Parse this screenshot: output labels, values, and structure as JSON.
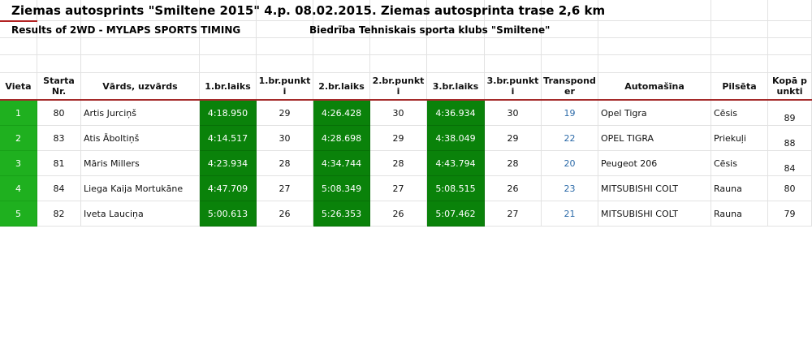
{
  "header": {
    "title": "Ziemas autosprints \"Smiltene 2015\" 4.p. 08.02.2015. Ziemas autosprinta trase 2,6 km",
    "subtitle_left": "Results of 2WD - MYLAPS SPORTS TIMING",
    "subtitle_right": "Biedrība Tehniskais sporta klubs \"Smiltene\""
  },
  "table": {
    "columns": [
      "Vieta",
      "Starta Nr.",
      "Vārds, uzvārds",
      "1.br.laiks",
      "1.br.punkti",
      "2.br.laiks",
      "2.br.punkti",
      "3.br.laiks",
      "3.br.punkti",
      "Transponder",
      "Automašīna",
      "Pilsēta",
      "Kopā punkti"
    ],
    "rows": [
      [
        "1",
        "80",
        "Artis Jurciņš",
        "4:18.950",
        "29",
        "4:26.428",
        "30",
        "4:36.934",
        "30",
        "19",
        "Opel Tigra",
        "Cēsis",
        "89"
      ],
      [
        "2",
        "83",
        "Atis Āboltiņš",
        "4:14.517",
        "30",
        "4:28.698",
        "29",
        "4:38.049",
        "29",
        "22",
        "OPEL TIGRA",
        "Priekuļi",
        "88"
      ],
      [
        "3",
        "81",
        "Māris Millers",
        "4:23.934",
        "28",
        "4:34.744",
        "28",
        "4:43.794",
        "28",
        "20",
        "Peugeot 206",
        "Cēsis",
        "84"
      ],
      [
        "4",
        "84",
        "Liega Kaija Mortukāne",
        "4:47.709",
        "27",
        "5:08.349",
        "27",
        "5:08.515",
        "26",
        "23",
        "MITSUBISHI COLT",
        "Rauna",
        "80"
      ],
      [
        "5",
        "82",
        "Iveta Lauciņa",
        "5:00.613",
        "26",
        "5:26.353",
        "26",
        "5:07.462",
        "27",
        "21",
        "MITSUBISHI COLT",
        "Rauna",
        "79"
      ]
    ]
  }
}
